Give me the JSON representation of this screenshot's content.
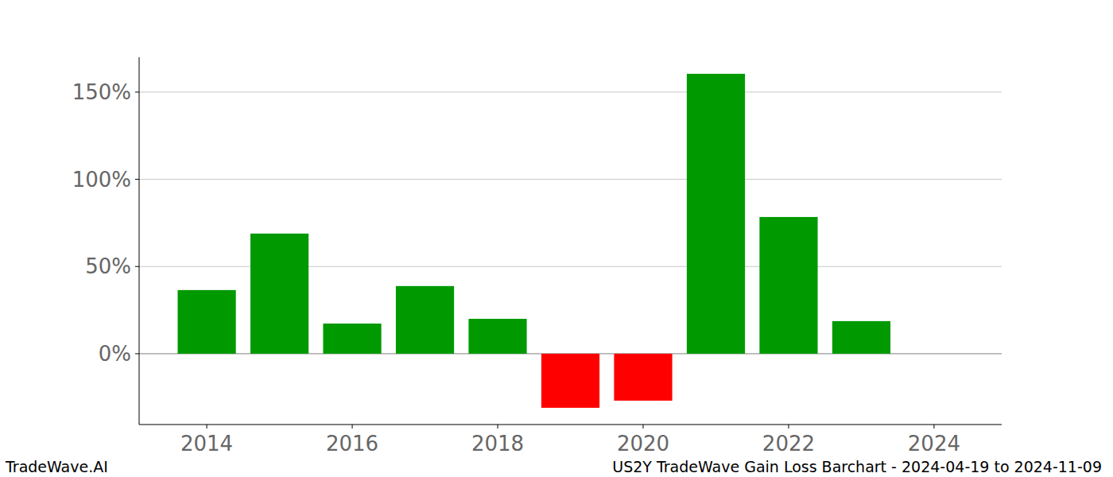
{
  "chart_data": {
    "type": "bar",
    "title": "US2Y TradeWave Gain Loss Barchart - 2024-04-19 to 2024-11-09",
    "source": "TradeWave.AI",
    "x": [
      2014,
      2015,
      2016,
      2017,
      2018,
      2019,
      2020,
      2021,
      2022,
      2023
    ],
    "values": [
      36.5,
      68.9,
      17.3,
      38.8,
      20,
      -31,
      -26.9,
      160.5,
      78.4,
      18.7
    ],
    "colors": [
      "#009900",
      "#009900",
      "#009900",
      "#009900",
      "#009900",
      "#ff0000",
      "#ff0000",
      "#009900",
      "#009900",
      "#009900"
    ],
    "xlim": [
      2013.07,
      2024.93
    ],
    "xticks": [
      2014,
      2016,
      2018,
      2020,
      2022,
      2024
    ],
    "ylim": [
      -40.6,
      170
    ],
    "yticks": [
      {
        "value": 0,
        "label": "0%"
      },
      {
        "value": 50,
        "label": "50%"
      },
      {
        "value": 100,
        "label": "100%"
      },
      {
        "value": 150,
        "label": "150%"
      }
    ],
    "grid": true
  }
}
